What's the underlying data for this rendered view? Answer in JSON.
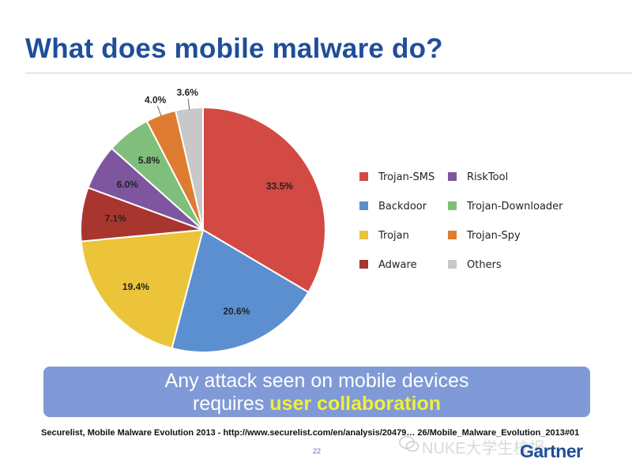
{
  "slide": {
    "title": "What does mobile malware do?",
    "callout_line1": "Any attack seen on mobile devices",
    "callout_line2_plain": "requires",
    "callout_line2_highlight": "user collaboration",
    "source": "Securelist, Mobile Malware Evolution 2013 - http://www.securelist.com/en/analysis/20479… 26/Mobile_Malware_Evolution_2013#01",
    "page_number": "22",
    "logo": "Gartner",
    "watermark": "NUKE大学生校报",
    "colors": {
      "title": "#1f4e9a",
      "callout_bg": "#7f9ad6",
      "callout_highlight": "#f3ee3a"
    }
  },
  "chart_data": {
    "type": "pie",
    "title": "",
    "categories": [
      "Trojan-SMS",
      "Backdoor",
      "Trojan",
      "Adware",
      "RiskTool",
      "Trojan-Downloader",
      "Trojan-Spy",
      "Others"
    ],
    "values": [
      33.5,
      20.6,
      19.4,
      7.1,
      6.0,
      5.8,
      4.0,
      3.6
    ],
    "labels": [
      "33.5%",
      "20.6%",
      "19.4%",
      "7.1%",
      "6.0%",
      "5.8%",
      "4.0%",
      "3.6%"
    ],
    "colors": [
      "#d24a43",
      "#5b8fd0",
      "#ebc43a",
      "#a8362f",
      "#7e56a0",
      "#7fbf7b",
      "#de7d31",
      "#c8c8c8"
    ],
    "legend_placement": "right",
    "legend": [
      {
        "label": "Trojan-SMS",
        "color": "#d24a43"
      },
      {
        "label": "RiskTool",
        "color": "#7e56a0"
      },
      {
        "label": "Backdoor",
        "color": "#5b8fd0"
      },
      {
        "label": "Trojan-Downloader",
        "color": "#7fbf7b"
      },
      {
        "label": "Trojan",
        "color": "#ebc43a"
      },
      {
        "label": "Trojan-Spy",
        "color": "#de7d31"
      },
      {
        "label": "Adware",
        "color": "#a8362f"
      },
      {
        "label": "Others",
        "color": "#c8c8c8"
      }
    ]
  }
}
